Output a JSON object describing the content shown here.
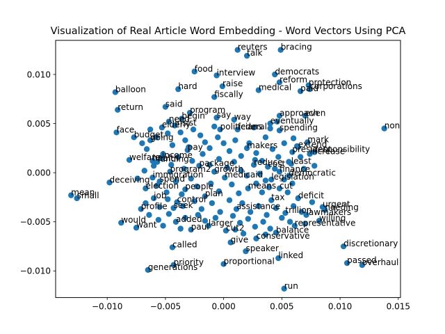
{
  "chart_data": {
    "type": "scatter",
    "title": "Visualization of Real Article Word Embedding - Word Vectors Using PCA",
    "xlabel": "",
    "ylabel": "",
    "xlim": [
      -0.01443,
      0.01519
    ],
    "ylim": [
      -0.01271,
      0.01347
    ],
    "xticks": [
      -0.01,
      -0.005,
      0.0,
      0.005,
      0.01,
      0.015
    ],
    "xtick_labels": [
      "−0.010",
      "−0.005",
      "0.000",
      "0.005",
      "0.010",
      "0.015"
    ],
    "yticks": [
      -0.01,
      -0.005,
      0.0,
      0.005,
      0.01
    ],
    "ytick_labels": [
      "−0.010",
      "−0.005",
      "0.000",
      "0.005",
      "0.010"
    ],
    "grid": false,
    "legend": false,
    "marker_color": "#1f77b4",
    "points": [
      {
        "label": "reuters",
        "x": 0.0012,
        "y": 0.0125
      },
      {
        "label": "talk",
        "x": 0.002,
        "y": 0.0119
      },
      {
        "label": "bracing",
        "x": 0.0049,
        "y": 0.0125
      },
      {
        "label": "food",
        "x": -0.0025,
        "y": 0.0103
      },
      {
        "label": "interview",
        "x": -0.0006,
        "y": 0.0099
      },
      {
        "label": "democrats",
        "x": 0.0044,
        "y": 0.01
      },
      {
        "label": "raise",
        "x": -0.0001,
        "y": 0.0088
      },
      {
        "label": "reform",
        "x": 0.0048,
        "y": 0.0092
      },
      {
        "label": "protection",
        "x": 0.0073,
        "y": 0.0089
      },
      {
        "label": "hard",
        "x": -0.0039,
        "y": 0.0085
      },
      {
        "label": "balloon",
        "x": -0.0093,
        "y": 0.0082
      },
      {
        "label": "medical",
        "x": 0.003,
        "y": 0.0084
      },
      {
        "label": "corporations",
        "x": 0.0074,
        "y": 0.0085
      },
      {
        "label": "paid",
        "x": 0.0066,
        "y": 0.0083
      },
      {
        "label": "fiscally",
        "x": -0.0008,
        "y": 0.0077
      },
      {
        "label": "said",
        "x": -0.005,
        "y": 0.0067
      },
      {
        "label": "return",
        "x": -0.0091,
        "y": 0.0064
      },
      {
        "label": "program",
        "x": -0.0029,
        "y": 0.0061
      },
      {
        "label": "approach",
        "x": 0.0048,
        "y": 0.0058
      },
      {
        "label": "even",
        "x": 0.007,
        "y": 0.0058
      },
      {
        "label": "begin",
        "x": -0.0036,
        "y": 0.0055
      },
      {
        "label": "say",
        "x": -0.0006,
        "y": 0.0056
      },
      {
        "label": "way",
        "x": 0.0009,
        "y": 0.0054
      },
      {
        "label": "eventually",
        "x": 0.004,
        "y": 0.005
      },
      {
        "label": "need",
        "x": -0.0047,
        "y": 0.0052
      },
      {
        "label": "elderly",
        "x": -0.0053,
        "y": 0.0046
      },
      {
        "label": "insist",
        "x": -0.0042,
        "y": 0.0048
      },
      {
        "label": "non",
        "x": 0.0138,
        "y": 0.0045
      },
      {
        "label": "face",
        "x": -0.0092,
        "y": 0.0041
      },
      {
        "label": "budget",
        "x": -0.0077,
        "y": 0.0036
      },
      {
        "label": "going",
        "x": -0.0063,
        "y": 0.0033
      },
      {
        "label": "politicians",
        "x": -0.0003,
        "y": 0.0044
      },
      {
        "label": "federal",
        "x": 0.0012,
        "y": 0.0044
      },
      {
        "label": "spending",
        "x": 0.0048,
        "y": 0.0043
      },
      {
        "label": "mark",
        "x": 0.0072,
        "y": 0.0031
      },
      {
        "label": "extend",
        "x": 0.0064,
        "y": 0.0026
      },
      {
        "label": "president",
        "x": 0.0059,
        "y": 0.0021
      },
      {
        "label": "responsibility",
        "x": 0.0078,
        "y": 0.0021
      },
      {
        "label": "increase",
        "x": 0.0074,
        "y": 0.0019
      },
      {
        "label": "pay",
        "x": -0.0031,
        "y": 0.0023
      },
      {
        "label": "income",
        "x": -0.0053,
        "y": 0.0015
      },
      {
        "label": "health",
        "x": -0.0061,
        "y": 0.0012
      },
      {
        "label": "welfare",
        "x": -0.0081,
        "y": 0.0013
      },
      {
        "label": "funding",
        "x": -0.0057,
        "y": 0.0011
      },
      {
        "label": "package",
        "x": -0.0021,
        "y": 0.0007
      },
      {
        "label": "makers",
        "x": 0.002,
        "y": 0.0025
      },
      {
        "label": "least",
        "x": 0.0058,
        "y": 0.0009
      },
      {
        "label": "reduce",
        "x": 0.0026,
        "y": 0.0008
      },
      {
        "label": "cost",
        "x": 0.0038,
        "y": 0.0006
      },
      {
        "label": "finance",
        "x": 0.0048,
        "y": 0.0001
      },
      {
        "label": "growth",
        "x": -0.0008,
        "y": 0.0001
      },
      {
        "label": "program2",
        "x": -0.0046,
        "y": 0.0001
      },
      {
        "label": "democratic",
        "x": 0.0056,
        "y": -0.0003
      },
      {
        "label": "immigration",
        "x": -0.0061,
        "y": -0.0005
      },
      {
        "label": "medicaid",
        "x": 0.0001,
        "y": -0.0005
      },
      {
        "label": "legislation",
        "x": 0.0041,
        "y": -0.0007
      },
      {
        "label": "deceiving",
        "x": -0.0098,
        "y": -0.001
      },
      {
        "label": "spend",
        "x": -0.0055,
        "y": -0.0009
      },
      {
        "label": "election",
        "x": -0.0067,
        "y": -0.0016
      },
      {
        "label": "people",
        "x": -0.0033,
        "y": -0.0017
      },
      {
        "label": "means",
        "x": 0.0021,
        "y": -0.0016
      },
      {
        "label": "cut",
        "x": 0.0048,
        "y": -0.0016
      },
      {
        "label": "mean",
        "x": -0.0131,
        "y": -0.0023
      },
      {
        "label": "small",
        "x": -0.0126,
        "y": -0.0026
      },
      {
        "label": "job",
        "x": -0.006,
        "y": -0.0026
      },
      {
        "label": "deficit",
        "x": 0.0064,
        "y": -0.0026
      },
      {
        "label": "control",
        "x": -0.004,
        "y": -0.003
      },
      {
        "label": "plan",
        "x": -0.0016,
        "y": -0.0024
      },
      {
        "label": "tax",
        "x": 0.0041,
        "y": -0.0028
      },
      {
        "label": "urgent",
        "x": 0.0085,
        "y": -0.0035
      },
      {
        "label": "needing",
        "x": 0.0087,
        "y": -0.0038
      },
      {
        "label": "profile",
        "x": -0.0071,
        "y": -0.0037
      },
      {
        "label": "seek",
        "x": -0.0043,
        "y": -0.0036
      },
      {
        "label": "assistance",
        "x": 0.0011,
        "y": -0.0037
      },
      {
        "label": "trillion",
        "x": 0.0053,
        "y": -0.0041
      },
      {
        "label": "lawmakers",
        "x": 0.0071,
        "y": -0.0043
      },
      {
        "label": "would",
        "x": -0.0088,
        "y": -0.0051
      },
      {
        "label": "want",
        "x": -0.0075,
        "y": -0.0056
      },
      {
        "label": "added",
        "x": -0.0041,
        "y": -0.005
      },
      {
        "label": "paul",
        "x": -0.0028,
        "y": -0.0058
      },
      {
        "label": "larger",
        "x": -0.0013,
        "y": -0.0054
      },
      {
        "label": "cut2",
        "x": 0.0002,
        "y": -0.0059
      },
      {
        "label": "willing",
        "x": 0.0082,
        "y": -0.0049
      },
      {
        "label": "representative",
        "x": 0.0061,
        "y": -0.0054
      },
      {
        "label": "balance",
        "x": 0.0045,
        "y": -0.0061
      },
      {
        "label": "give",
        "x": 0.0006,
        "y": -0.0071
      },
      {
        "label": "conservative",
        "x": 0.0028,
        "y": -0.0067
      },
      {
        "label": "called",
        "x": -0.0044,
        "y": -0.0076
      },
      {
        "label": "speaker",
        "x": 0.0019,
        "y": -0.008
      },
      {
        "label": "linked",
        "x": 0.0047,
        "y": -0.0087
      },
      {
        "label": "discretionary",
        "x": 0.0103,
        "y": -0.0075
      },
      {
        "label": "priority",
        "x": -0.0043,
        "y": -0.0094
      },
      {
        "label": "proportional",
        "x": 0.0,
        "y": -0.0093
      },
      {
        "label": "passed",
        "x": 0.0106,
        "y": -0.0092
      },
      {
        "label": "overhaul",
        "x": 0.0119,
        "y": -0.0094
      },
      {
        "label": "generations",
        "x": -0.0065,
        "y": -0.0099
      },
      {
        "label": "run",
        "x": 0.0052,
        "y": -0.0118
      }
    ],
    "extra_points": [
      [
        -0.007,
        0.003
      ],
      [
        -0.0063,
        0.0044
      ],
      [
        -0.0058,
        0.0036
      ],
      [
        -0.0048,
        0.004
      ],
      [
        -0.0044,
        0.0028
      ],
      [
        -0.0037,
        0.0041
      ],
      [
        -0.0033,
        0.0033
      ],
      [
        -0.003,
        0.0026
      ],
      [
        -0.0026,
        0.0044
      ],
      [
        -0.002,
        0.0038
      ],
      [
        -0.0016,
        0.0031
      ],
      [
        -0.0012,
        0.0025
      ],
      [
        -0.0005,
        0.0036
      ],
      [
        0.0,
        0.003
      ],
      [
        0.0005,
        0.0022
      ],
      [
        0.001,
        0.0033
      ],
      [
        0.0015,
        0.0017
      ],
      [
        0.0022,
        0.003
      ],
      [
        0.0028,
        0.002
      ],
      [
        0.0033,
        0.0012
      ],
      [
        0.0036,
        0.0036
      ],
      [
        0.0042,
        0.0024
      ],
      [
        0.0047,
        0.0016
      ],
      [
        0.0052,
        0.003
      ],
      [
        0.0056,
        0.0011
      ],
      [
        0.006,
        0.0035
      ],
      [
        0.0066,
        0.0016
      ],
      [
        0.0069,
        0.0004
      ],
      [
        -0.0052,
        0.0019
      ],
      [
        -0.0045,
        0.0008
      ],
      [
        -0.0039,
        0.0016
      ],
      [
        -0.0034,
        0.0004
      ],
      [
        -0.0027,
        0.0012
      ],
      [
        -0.0018,
        0.0019
      ],
      [
        -0.0012,
        0.0008
      ],
      [
        -0.0004,
        0.0014
      ],
      [
        0.0003,
        0.0005
      ],
      [
        0.0009,
        0.0011
      ],
      [
        0.0015,
        0.0002
      ],
      [
        0.002,
        -0.0003
      ],
      [
        0.0027,
        0.0013
      ],
      [
        0.0031,
        -0.0001
      ],
      [
        0.0036,
        -0.0008
      ],
      [
        0.0044,
        0.0004
      ],
      [
        0.0052,
        -0.0007
      ],
      [
        0.0059,
        -0.0011
      ],
      [
        -0.0074,
        -0.0006
      ],
      [
        -0.0068,
        0.0002
      ],
      [
        -0.0057,
        -0.0013
      ],
      [
        -0.0049,
        -0.002
      ],
      [
        -0.0041,
        -0.0009
      ],
      [
        -0.0036,
        -0.0022
      ],
      [
        -0.0028,
        -0.0006
      ],
      [
        -0.0023,
        -0.0014
      ],
      [
        -0.0011,
        -0.0011
      ],
      [
        -0.0004,
        -0.0019
      ],
      [
        0.0007,
        -0.0012
      ],
      [
        0.0013,
        -0.0021
      ],
      [
        0.0028,
        -0.0011
      ],
      [
        0.0033,
        -0.002
      ],
      [
        0.0039,
        -0.0015
      ],
      [
        0.0055,
        -0.002
      ],
      [
        -0.0067,
        -0.0031
      ],
      [
        -0.0055,
        -0.0035
      ],
      [
        -0.0048,
        -0.0027
      ],
      [
        -0.0035,
        -0.0034
      ],
      [
        -0.0025,
        -0.0029
      ],
      [
        -0.0019,
        -0.0037
      ],
      [
        -0.001,
        -0.0031
      ],
      [
        -0.0003,
        -0.004
      ],
      [
        0.0005,
        -0.0028
      ],
      [
        0.0016,
        -0.0031
      ],
      [
        0.0023,
        -0.004
      ],
      [
        0.003,
        -0.0034
      ],
      [
        0.0037,
        -0.0043
      ],
      [
        0.0045,
        -0.0036
      ],
      [
        0.006,
        -0.0034
      ],
      [
        0.0067,
        -0.004
      ],
      [
        0.0076,
        -0.003
      ],
      [
        -0.0064,
        -0.0043
      ],
      [
        -0.0056,
        -0.0048
      ],
      [
        -0.0047,
        -0.0042
      ],
      [
        -0.0033,
        -0.0046
      ],
      [
        -0.0022,
        -0.0043
      ],
      [
        -0.0016,
        -0.0049
      ],
      [
        -0.0007,
        -0.0046
      ],
      [
        0.0008,
        -0.0044
      ],
      [
        0.0014,
        -0.0051
      ],
      [
        0.0021,
        -0.0047
      ],
      [
        0.0027,
        -0.0055
      ],
      [
        0.0034,
        -0.005
      ],
      [
        0.004,
        -0.0057
      ],
      [
        0.005,
        -0.0046
      ],
      [
        0.0057,
        -0.005
      ],
      [
        0.007,
        -0.0052
      ],
      [
        -0.0052,
        -0.0054
      ],
      [
        -0.0037,
        -0.0057
      ],
      [
        0.001,
        -0.0058
      ],
      [
        0.0017,
        -0.0062
      ],
      [
        0.0036,
        -0.0063
      ],
      [
        -0.0066,
        0.0024
      ],
      [
        -0.006,
        0.0007
      ],
      [
        0.0063,
        0.0027
      ],
      [
        0.0078,
        0.0007
      ],
      [
        0.0046,
        0.0052
      ],
      [
        0.0026,
        0.0046
      ],
      [
        -0.0008,
        0.0047
      ],
      [
        0.004,
        0.0045
      ]
    ]
  }
}
